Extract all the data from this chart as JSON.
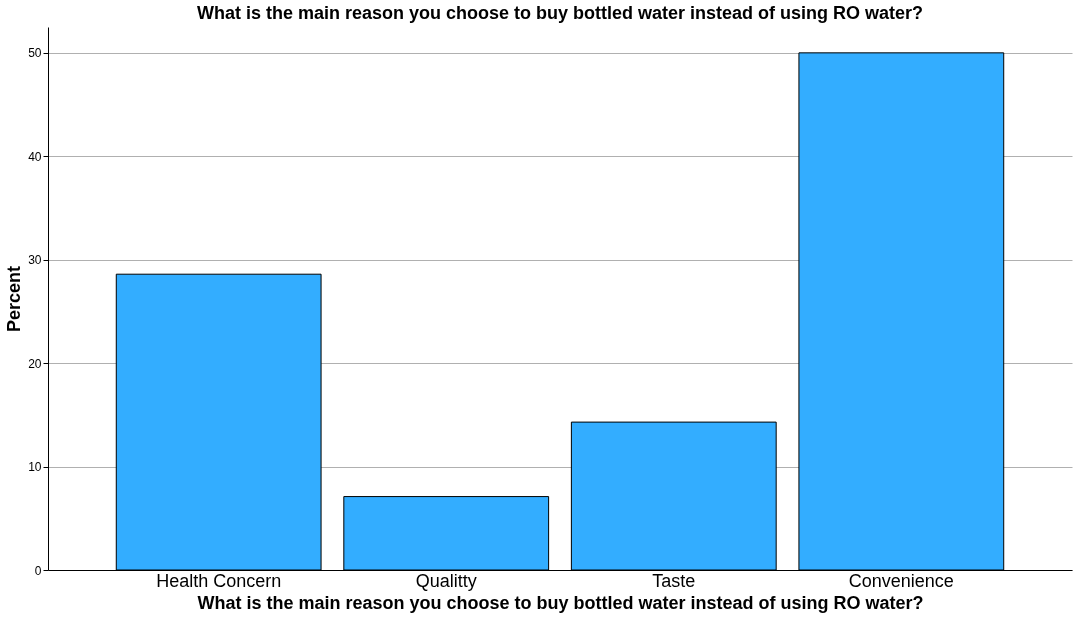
{
  "chart_data": {
    "type": "bar",
    "title": "What is the main reason you choose to buy bottled water instead of using RO water?",
    "xlabel": "What is the main reason you choose to buy bottled water instead of using RO water?",
    "ylabel": "Percent",
    "categories": [
      "Health Concern",
      "Qualitty",
      "Taste",
      "Convenience"
    ],
    "values": [
      28.6,
      7.1,
      14.3,
      50.0
    ],
    "color": "#33adff",
    "ylim": [
      0,
      52.5
    ],
    "yticks": [
      0,
      10,
      20,
      30,
      40,
      50
    ],
    "grid": "y"
  }
}
